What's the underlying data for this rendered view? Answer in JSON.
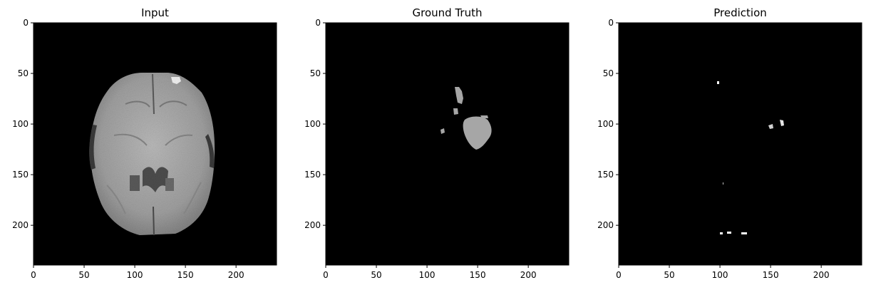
{
  "panels": [
    {
      "title": "Input",
      "image_description": "axial brain MRI slice, grayscale",
      "x_ticks": [
        "0",
        "50",
        "100",
        "150",
        "200"
      ],
      "y_ticks": [
        "0",
        "50",
        "100",
        "150",
        "200"
      ]
    },
    {
      "title": "Ground Truth",
      "image_description": "segmentation mask",
      "x_ticks": [
        "0",
        "50",
        "100",
        "150",
        "200"
      ],
      "y_ticks": [
        "0",
        "50",
        "100",
        "150",
        "200"
      ]
    },
    {
      "title": "Prediction",
      "image_description": "predicted segmentation mask",
      "x_ticks": [
        "0",
        "50",
        "100",
        "150",
        "200"
      ],
      "y_ticks": [
        "0",
        "50",
        "100",
        "150",
        "200"
      ]
    }
  ],
  "axis_range": [
    0,
    240
  ],
  "tick_values": [
    0,
    50,
    100,
    150,
    200
  ],
  "colors": {
    "background": "#000000",
    "mask_gray": "#a6a6a6",
    "mask_white": "#ffffff",
    "axis": "#000000"
  }
}
